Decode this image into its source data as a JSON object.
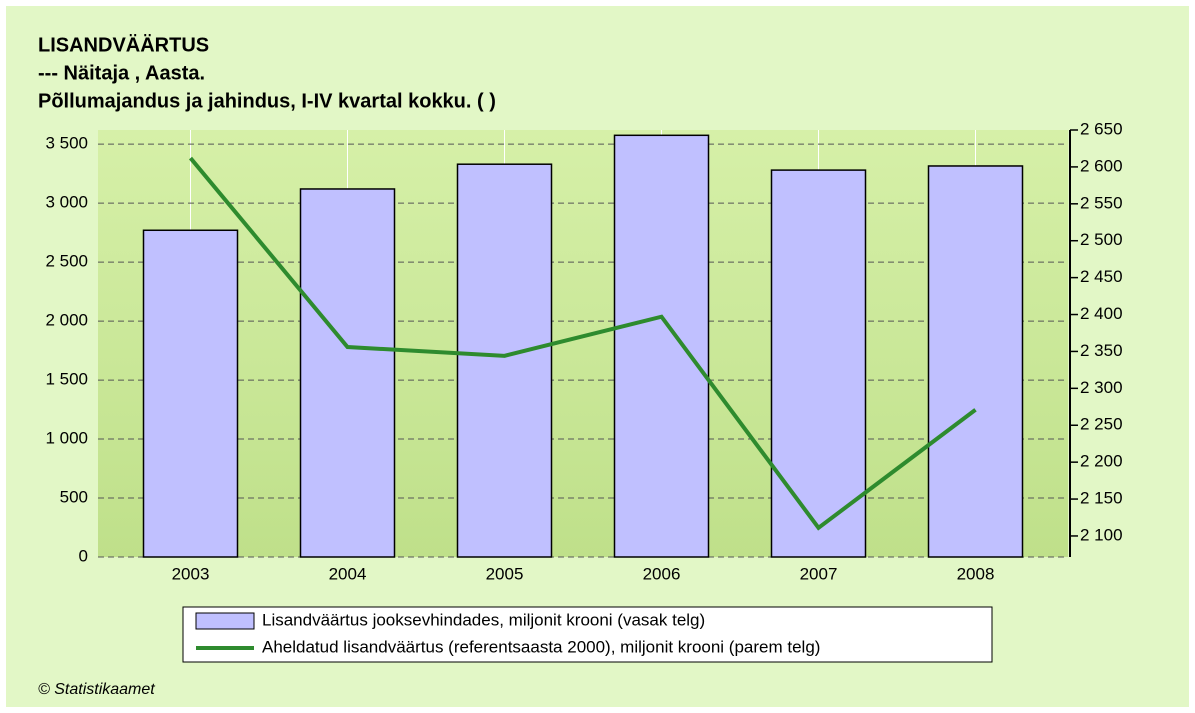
{
  "chart_data": {
    "type": "bar-line",
    "title": "LISANDVÄÄRTUS",
    "subtitle": "--- Näitaja , Aasta.",
    "subtitle2": "Põllumajandus ja jahindus, I-IV kvartal kokku. ( )",
    "categories": [
      "2003",
      "2004",
      "2005",
      "2006",
      "2007",
      "2008"
    ],
    "series": [
      {
        "name": "Lisandväärtus jooksevhindades, miljonit krooni (vasak telg)",
        "color": "#c0c0ff",
        "type": "bar",
        "values": [
          2770,
          3120,
          3330,
          3575,
          3280,
          3315
        ]
      },
      {
        "name": "Aheldatud lisandväärtus (referentsaasta 2000), miljonit krooni (parem telg)",
        "color": "#2e8b2e",
        "type": "line",
        "axis": "y2",
        "values": [
          2612,
          2356,
          2344,
          2397,
          2111,
          2271
        ]
      }
    ],
    "ylim": [
      0,
      3620
    ],
    "yticks": [
      0,
      500,
      {
        "value": 1000,
        "label": "1 000"
      },
      {
        "value": 1500,
        "label": "1 500"
      },
      {
        "value": 2000,
        "label": "2 000"
      },
      {
        "value": 2500,
        "label": "2 500"
      },
      {
        "value": 3000,
        "label": "3 000"
      },
      {
        "value": 3500,
        "label": "3 500"
      }
    ],
    "y2lim": [
      2071.5,
      2650
    ],
    "y2ticks": [
      {
        "value": 2100,
        "label": "2 100"
      },
      {
        "value": 2150,
        "label": "2 150"
      },
      {
        "value": 2200,
        "label": "2 200"
      },
      {
        "value": 2250,
        "label": "2 250"
      },
      {
        "value": 2300,
        "label": "2 300"
      },
      {
        "value": 2350,
        "label": "2 350"
      },
      {
        "value": 2400,
        "label": "2 400"
      },
      {
        "value": 2450,
        "label": "2 450"
      },
      {
        "value": 2500,
        "label": "2 500"
      },
      {
        "value": 2550,
        "label": "2 550"
      },
      {
        "value": 2600,
        "label": "2 600"
      },
      {
        "value": 2650,
        "label": "2 650"
      }
    ],
    "grid": true,
    "source": "© Statistikaamet"
  }
}
